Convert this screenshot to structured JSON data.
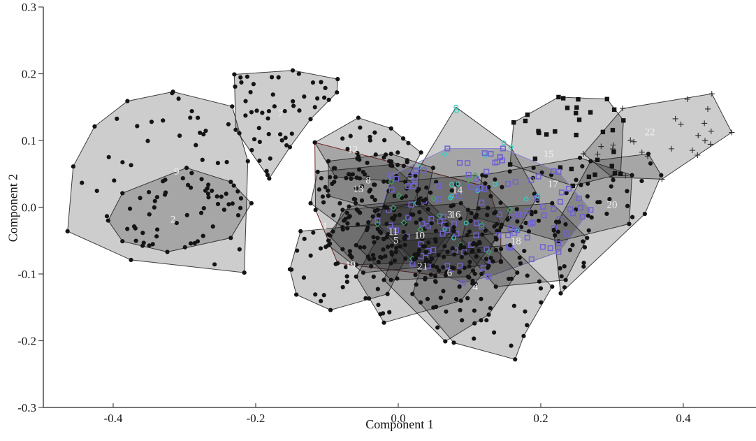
{
  "chart_data": {
    "type": "scatter",
    "title": "",
    "xlabel": "Component 1",
    "ylabel": "Component 2",
    "xlim": [
      -0.498,
      0.502
    ],
    "ylim": [
      -0.3,
      0.3
    ],
    "xticks": [
      -0.4,
      -0.2,
      0.0,
      0.2,
      0.4
    ],
    "yticks": [
      0.3,
      0.2,
      0.1,
      0.0,
      -0.1,
      -0.2,
      -0.3
    ],
    "grid": false,
    "legend": "none",
    "description": "PCA morphospace scatter of 22 groups, each enclosed by a semi-transparent grey convex hull with the group number printed in white at its centroid.",
    "style": {
      "hull_fill": "rgba(28,28,28,0.22)",
      "hull_stroke": "rgba(30,30,30,0.85)",
      "dot_color": "#141414",
      "square_color": "#141414",
      "plus_color": "#2a2a2a",
      "blue_square_color": "#6f63d2",
      "cyan_circle_color": "#35cdc4",
      "green_diamond_color": "#3fa564",
      "label_color": "#f2f2f2",
      "axis_color": "#4a4a4a",
      "tick_label_color": "#1a1a1a",
      "red_hull_stroke": "#7a2424",
      "blue_hull_stroke": "#8a86d2"
    },
    "draw_order": [
      9,
      2,
      7,
      22,
      20,
      15,
      12,
      17,
      1,
      8,
      13,
      19,
      14,
      16,
      3,
      5,
      11,
      10,
      18,
      21,
      6,
      4
    ],
    "clusters": [
      {
        "id": 1,
        "label": "1",
        "marker": "dot",
        "n_points": 36,
        "edge_color": "#7a2424",
        "label_pos": [
          -0.103,
          -0.028
        ],
        "hull": [
          [
            -0.117,
            0.097
          ],
          [
            0.127,
            0.03
          ],
          [
            0.144,
            -0.03
          ],
          [
            0.144,
            -0.081
          ],
          [
            0.046,
            -0.101
          ],
          [
            -0.085,
            -0.084
          ],
          [
            -0.116,
            -0.004
          ]
        ]
      },
      {
        "id": 2,
        "label": "2",
        "marker": "dot",
        "n_points": 46,
        "label_pos": [
          -0.316,
          -0.018
        ],
        "hull": [
          [
            -0.297,
            0.059
          ],
          [
            -0.235,
            0.038
          ],
          [
            -0.206,
            0.006
          ],
          [
            -0.235,
            -0.046
          ],
          [
            -0.324,
            -0.067
          ],
          [
            -0.387,
            -0.051
          ],
          [
            -0.407,
            -0.02
          ],
          [
            -0.387,
            0.021
          ]
        ]
      },
      {
        "id": 3,
        "label": "3",
        "marker": "odia-green",
        "n_points": 9,
        "label_pos": [
          0.0725,
          -0.0105
        ],
        "hull": [
          [
            -0.01,
            0.038
          ],
          [
            0.108,
            0.048
          ],
          [
            0.157,
            -0.004
          ],
          [
            0.127,
            -0.067
          ],
          [
            0.02,
            -0.077
          ],
          [
            -0.029,
            -0.025
          ]
        ]
      },
      {
        "id": 4,
        "label": "4",
        "marker": "dot",
        "n_points": 26,
        "label_pos": [
          0.108,
          -0.119
        ],
        "hull": [
          [
            0.039,
            -0.067
          ],
          [
            0.157,
            -0.057
          ],
          [
            0.216,
            -0.119
          ],
          [
            0.176,
            -0.193
          ],
          [
            0.164,
            -0.228
          ],
          [
            0.078,
            -0.203
          ],
          [
            0.02,
            -0.13
          ]
        ]
      },
      {
        "id": 5,
        "label": "5",
        "marker": "dot",
        "n_points": 26,
        "label_pos": [
          -0.003,
          -0.049
        ],
        "hull": [
          [
            -0.078,
            -0.004
          ],
          [
            0.029,
            0.006
          ],
          [
            0.078,
            -0.036
          ],
          [
            0.049,
            -0.088
          ],
          [
            -0.049,
            -0.098
          ],
          [
            -0.098,
            -0.057
          ]
        ]
      },
      {
        "id": 6,
        "label": "6",
        "marker": "dot",
        "n_points": 30,
        "label_pos": [
          0.072,
          -0.098
        ],
        "hull": [
          [
            0.0,
            -0.051
          ],
          [
            0.118,
            -0.041
          ],
          [
            0.167,
            -0.098
          ],
          [
            0.127,
            -0.161
          ],
          [
            0.066,
            -0.201
          ],
          [
            -0.02,
            -0.109
          ]
        ]
      },
      {
        "id": 7,
        "label": "7",
        "marker": "dot",
        "n_points": 44,
        "label_pos": [
          -0.165,
          0.141
        ],
        "hull": [
          [
            -0.23,
            0.199
          ],
          [
            -0.148,
            0.205
          ],
          [
            -0.085,
            0.192
          ],
          [
            -0.086,
            0.172
          ],
          [
            -0.123,
            0.132
          ],
          [
            -0.152,
            0.09
          ],
          [
            -0.181,
            0.043
          ],
          [
            -0.228,
            0.116
          ]
        ]
      },
      {
        "id": 8,
        "label": "8",
        "marker": "dot",
        "n_points": 26,
        "label_pos": [
          -0.042,
          0.041
        ],
        "hull": [
          [
            -0.098,
            0.069
          ],
          [
            -0.01,
            0.08
          ],
          [
            0.049,
            0.059
          ],
          [
            0.039,
            0.006
          ],
          [
            -0.029,
            -0.004
          ],
          [
            -0.098,
            0.017
          ]
        ]
      },
      {
        "id": 9,
        "label": "9",
        "marker": "dot",
        "n_points": 38,
        "label_pos": [
          -0.311,
          0.054
        ],
        "hull": [
          [
            -0.464,
            -0.036
          ],
          [
            -0.456,
            0.061
          ],
          [
            -0.426,
            0.121
          ],
          [
            -0.38,
            0.159
          ],
          [
            -0.316,
            0.173
          ],
          [
            -0.233,
            0.151
          ],
          [
            -0.211,
            0.069
          ],
          [
            -0.216,
            -0.098
          ],
          [
            -0.375,
            -0.079
          ]
        ]
      },
      {
        "id": 10,
        "label": "10",
        "marker": "dot",
        "n_points": 30,
        "label_pos": [
          0.03,
          -0.042
        ],
        "hull": [
          [
            -0.029,
            -0.004
          ],
          [
            0.088,
            0.006
          ],
          [
            0.137,
            -0.046
          ],
          [
            0.098,
            -0.104
          ],
          [
            -0.01,
            -0.109
          ],
          [
            -0.059,
            -0.057
          ]
        ]
      },
      {
        "id": 11,
        "label": "11",
        "marker": "dot",
        "n_points": 26,
        "label_pos": [
          -0.007,
          -0.036
        ],
        "hull": [
          [
            -0.069,
            0.001
          ],
          [
            0.039,
            0.012
          ],
          [
            0.078,
            -0.03
          ],
          [
            0.039,
            -0.083
          ],
          [
            -0.059,
            -0.086
          ],
          [
            -0.098,
            -0.041
          ]
        ]
      },
      {
        "id": 12,
        "label": "12",
        "marker": "dot",
        "n_points": 24,
        "label_pos": [
          -0.064,
          0.087
        ],
        "hull": [
          [
            -0.117,
            0.097
          ],
          [
            -0.056,
            0.134
          ],
          [
            -0.01,
            0.118
          ],
          [
            0.007,
            0.103
          ],
          [
            0.032,
            0.082
          ],
          [
            0.01,
            0.038
          ],
          [
            -0.088,
            0.045
          ]
        ]
      },
      {
        "id": 13,
        "label": "13",
        "marker": "dot",
        "n_points": 26,
        "label_pos": [
          -0.056,
          0.028
        ],
        "hull": [
          [
            -0.113,
            0.053
          ],
          [
            -0.01,
            0.064
          ],
          [
            0.029,
            0.027
          ],
          [
            0.01,
            -0.025
          ],
          [
            -0.078,
            -0.03
          ],
          [
            -0.123,
            0.006
          ]
        ]
      },
      {
        "id": 14,
        "label": "14",
        "marker": "ocirc-cyan",
        "n_points": 13,
        "label_pos": [
          0.083,
          0.026
        ],
        "hull": [
          [
            0.081,
            0.15
          ],
          [
            0.158,
            0.09
          ],
          [
            0.196,
            0.017
          ],
          [
            0.167,
            -0.036
          ],
          [
            0.078,
            -0.046
          ],
          [
            0.026,
            0.006
          ],
          [
            0.03,
            0.06
          ]
        ]
      },
      {
        "id": 15,
        "label": "15",
        "marker": "sq",
        "n_points": 26,
        "label_pos": [
          0.211,
          0.08
        ],
        "hull": [
          [
            0.157,
            0.064
          ],
          [
            0.162,
            0.127
          ],
          [
            0.225,
            0.165
          ],
          [
            0.293,
            0.162
          ],
          [
            0.316,
            0.13
          ],
          [
            0.312,
            0.05
          ],
          [
            0.245,
            0.032
          ]
        ]
      },
      {
        "id": 16,
        "label": "16",
        "marker": "osq-blue",
        "n_points": 105,
        "edge_color": "#8a86d2",
        "label_pos": [
          0.0804,
          -0.0105
        ],
        "hull": [
          [
            -0.01,
            0.048
          ],
          [
            0.069,
            0.088
          ],
          [
            0.147,
            0.088
          ],
          [
            0.225,
            0.053
          ],
          [
            0.27,
            -0.004
          ],
          [
            0.225,
            -0.067
          ],
          [
            0.127,
            -0.104
          ],
          [
            0.091,
            -0.113
          ],
          [
            0.02,
            -0.085
          ],
          [
            -0.029,
            -0.02
          ]
        ]
      },
      {
        "id": 17,
        "label": "17",
        "marker": "dot",
        "n_points": 30,
        "label_pos": [
          0.217,
          0.035
        ],
        "hull": [
          [
            0.118,
            0.048
          ],
          [
            0.255,
            0.074
          ],
          [
            0.328,
            0.048
          ],
          [
            0.324,
            -0.025
          ],
          [
            0.225,
            -0.051
          ],
          [
            0.108,
            -0.015
          ]
        ]
      },
      {
        "id": 18,
        "label": "18",
        "marker": "dot",
        "n_points": 30,
        "label_pos": [
          0.165,
          -0.05
        ],
        "hull": [
          [
            0.098,
            -0.004
          ],
          [
            0.216,
            0.006
          ],
          [
            0.265,
            -0.046
          ],
          [
            0.235,
            -0.109
          ],
          [
            0.137,
            -0.119
          ],
          [
            0.088,
            -0.057
          ]
        ]
      },
      {
        "id": 19,
        "label": "19",
        "marker": "dot",
        "n_points": 26,
        "label_pos": [
          -0.067,
          -0.086
        ],
        "hull": [
          [
            -0.137,
            -0.036
          ],
          [
            -0.029,
            -0.025
          ],
          [
            0.01,
            -0.077
          ],
          [
            -0.015,
            -0.13
          ],
          [
            -0.095,
            -0.154
          ],
          [
            -0.143,
            -0.131
          ],
          [
            -0.152,
            -0.093
          ]
        ]
      },
      {
        "id": 20,
        "label": "20",
        "marker": "dot",
        "n_points": 18,
        "label_pos": [
          0.3,
          0.004
        ],
        "hull": [
          [
            0.27,
            0.069
          ],
          [
            0.351,
            0.08
          ],
          [
            0.369,
            0.048
          ],
          [
            0.346,
            -0.01
          ],
          [
            0.228,
            -0.129
          ],
          [
            0.218,
            -0.034
          ]
        ]
      },
      {
        "id": 21,
        "label": "21",
        "marker": "dot",
        "n_points": 26,
        "label_pos": [
          0.034,
          -0.088
        ],
        "hull": [
          [
            -0.029,
            -0.046
          ],
          [
            0.078,
            -0.036
          ],
          [
            0.127,
            -0.088
          ],
          [
            0.088,
            -0.14
          ],
          [
            -0.02,
            -0.173
          ],
          [
            -0.059,
            -0.104
          ]
        ]
      },
      {
        "id": 22,
        "label": "22",
        "marker": "plus",
        "n_points": 20,
        "label_pos": [
          0.353,
          0.113
        ],
        "hull": [
          [
            0.26,
            0.08
          ],
          [
            0.315,
            0.148
          ],
          [
            0.44,
            0.17
          ],
          [
            0.468,
            0.112
          ],
          [
            0.42,
            0.078
          ],
          [
            0.37,
            0.042
          ],
          [
            0.3,
            0.045
          ]
        ]
      }
    ]
  }
}
